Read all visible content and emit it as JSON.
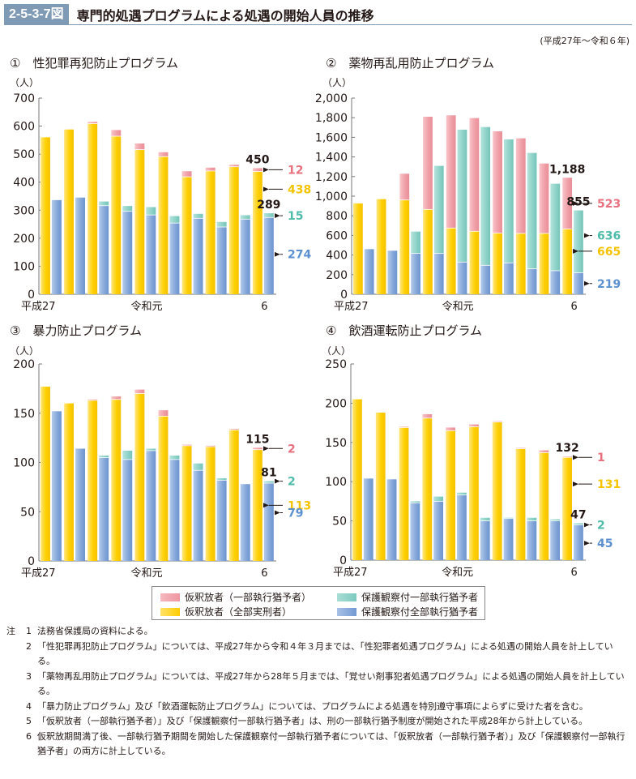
{
  "header": {
    "figure_number": "2-5-3-7図",
    "title": "専門的処遇プログラムによる処遇の開始人員の推移",
    "period": "(平成27年～令和６年)"
  },
  "colors": {
    "pink": "#f0a0a8",
    "yellow": "#ffd21f",
    "teal": "#8fd3c9",
    "blue": "#86a8da",
    "pink_label": "#e8707f",
    "yellow_label": "#f5c400",
    "teal_label": "#4fbcaa",
    "blue_label": "#5b8fd0"
  },
  "legend": [
    {
      "key": "pink",
      "label": "仮釈放者（一部執行猶予者）"
    },
    {
      "key": "teal",
      "label": "保護観察付一部執行猶予者"
    },
    {
      "key": "yellow",
      "label": "仮釈放者（全部実刑者）"
    },
    {
      "key": "blue",
      "label": "保護観察付全部執行猶予者"
    }
  ],
  "chart_data": [
    {
      "type": "bar",
      "stacked": true,
      "title": "①　性犯罪再犯防止プログラム",
      "ylabel": "（人）",
      "ylim": [
        0,
        700
      ],
      "yticks": [
        0,
        100,
        200,
        300,
        400,
        500,
        600,
        700
      ],
      "ytick_labels": [
        "0",
        "100",
        "200",
        "300",
        "400",
        "500",
        "600",
        "700"
      ],
      "categories": [
        "平成27",
        "28",
        "29",
        "30",
        "令和元",
        "2",
        "3",
        "4",
        "5",
        "6"
      ],
      "xtick_labels": [
        {
          "index": 0,
          "label": "平成27"
        },
        {
          "index": 4,
          "label": "令和元"
        },
        {
          "index": 9,
          "label": "6"
        }
      ],
      "groups": [
        {
          "name": "仮釈放者",
          "stack": [
            {
              "series": "仮釈放者（全部実刑者）",
              "color": "yellow",
              "values": [
                560,
                588,
                609,
                564,
                516,
                491,
                419,
                440,
                455,
                438
              ]
            },
            {
              "series": "仮釈放者（一部執行猶予者）",
              "color": "pink",
              "values": [
                0,
                0,
                6,
                22,
                22,
                16,
                20,
                12,
                7,
                12
              ]
            }
          ]
        },
        {
          "name": "保護観察",
          "stack": [
            {
              "series": "保護観察付全部執行猶予者",
              "color": "blue",
              "values": [
                336,
                345,
                316,
                296,
                283,
                254,
                271,
                240,
                268,
                274
              ]
            },
            {
              "series": "保護観察付一部執行猶予者",
              "color": "teal",
              "values": [
                0,
                0,
                15,
                19,
                28,
                25,
                16,
                18,
                14,
                15
              ]
            }
          ]
        }
      ],
      "annotations": {
        "total_a": "450",
        "total_b": "289",
        "pink": "12",
        "yellow": "438",
        "teal": "15",
        "blue": "274"
      }
    },
    {
      "type": "bar",
      "stacked": true,
      "title": "②　薬物再乱用防止プログラム",
      "ylabel": "（人）",
      "ylim": [
        0,
        2000
      ],
      "yticks": [
        0,
        200,
        400,
        600,
        800,
        1000,
        1200,
        1400,
        1600,
        1800,
        2000
      ],
      "ytick_labels": [
        "0",
        "200",
        "400",
        "600",
        "800",
        "1,000",
        "1,200",
        "1,400",
        "1,600",
        "1,800",
        "2,000"
      ],
      "categories": [
        "平成27",
        "28",
        "29",
        "30",
        "令和元",
        "2",
        "3",
        "4",
        "5",
        "6"
      ],
      "xtick_labels": [
        {
          "index": 0,
          "label": "平成27"
        },
        {
          "index": 4,
          "label": "令和元"
        },
        {
          "index": 9,
          "label": "6"
        }
      ],
      "groups": [
        {
          "name": "仮釈放者",
          "stack": [
            {
              "series": "仮釈放者（全部実刑者）",
              "color": "yellow",
              "values": [
                926,
                970,
                961,
                865,
                675,
                642,
                623,
                620,
                620,
                665
              ]
            },
            {
              "series": "仮釈放者（一部執行猶予者）",
              "color": "pink",
              "values": [
                0,
                0,
                268,
                945,
                1149,
                1154,
                1038,
                970,
                713,
                523
              ]
            }
          ]
        },
        {
          "name": "保護観察",
          "stack": [
            {
              "series": "保護観察付全部執行猶予者",
              "color": "blue",
              "values": [
                460,
                444,
                416,
                416,
                328,
                295,
                320,
                259,
                240,
                219
              ]
            },
            {
              "series": "保護観察付一部執行猶予者",
              "color": "teal",
              "values": [
                0,
                0,
                223,
                893,
                1350,
                1410,
                1259,
                1182,
                887,
                636
              ]
            }
          ]
        }
      ],
      "annotations": {
        "total_a": "1,188",
        "total_b": "855",
        "pink": "523",
        "yellow": "665",
        "teal": "636",
        "blue": "219"
      }
    },
    {
      "type": "bar",
      "stacked": true,
      "title": "③　暴力防止プログラム",
      "ylabel": "（人）",
      "ylim": [
        0,
        200
      ],
      "yticks": [
        0,
        50,
        100,
        150,
        200
      ],
      "ytick_labels": [
        "0",
        "50",
        "100",
        "150",
        "200"
      ],
      "categories": [
        "平成27",
        "28",
        "29",
        "30",
        "令和元",
        "2",
        "3",
        "4",
        "5",
        "6"
      ],
      "xtick_labels": [
        {
          "index": 0,
          "label": "平成27"
        },
        {
          "index": 4,
          "label": "令和元"
        },
        {
          "index": 9,
          "label": "6"
        }
      ],
      "groups": [
        {
          "name": "仮釈放者",
          "stack": [
            {
              "series": "仮釈放者（全部実刑者）",
              "color": "yellow",
              "values": [
                177,
                160,
                163,
                164,
                170,
                147,
                117,
                116,
                133,
                113
              ]
            },
            {
              "series": "仮釈放者（一部執行猶予者）",
              "color": "pink",
              "values": [
                0,
                0,
                1,
                3,
                4,
                6,
                1,
                1,
                1,
                2
              ]
            }
          ]
        },
        {
          "name": "保護観察",
          "stack": [
            {
              "series": "保護観察付全部執行猶予者",
              "color": "blue",
              "values": [
                152,
                114,
                105,
                103,
                112,
                103,
                92,
                82,
                78,
                79
              ]
            },
            {
              "series": "保護観察付一部執行猶予者",
              "color": "teal",
              "values": [
                0,
                0,
                2,
                9,
                2,
                4,
                7,
                2,
                0,
                2
              ]
            }
          ]
        }
      ],
      "annotations": {
        "total_a": "115",
        "total_b": "81",
        "pink": "2",
        "yellow": "113",
        "teal": "2",
        "blue": "79"
      }
    },
    {
      "type": "bar",
      "stacked": true,
      "title": "④　飲酒運転防止プログラム",
      "ylabel": "（人）",
      "ylim": [
        0,
        250
      ],
      "yticks": [
        0,
        50,
        100,
        150,
        200,
        250
      ],
      "ytick_labels": [
        "0",
        "50",
        "100",
        "150",
        "200",
        "250"
      ],
      "categories": [
        "平成27",
        "28",
        "29",
        "30",
        "令和元",
        "2",
        "3",
        "4",
        "5",
        "6"
      ],
      "xtick_labels": [
        {
          "index": 0,
          "label": "平成27"
        },
        {
          "index": 4,
          "label": "令和元"
        },
        {
          "index": 9,
          "label": "6"
        }
      ],
      "groups": [
        {
          "name": "仮釈放者",
          "stack": [
            {
              "series": "仮釈放者（全部実刑者）",
              "color": "yellow",
              "values": [
                205,
                188,
                169,
                181,
                165,
                170,
                176,
                142,
                137,
                131
              ]
            },
            {
              "series": "仮釈放者（一部執行猶予者）",
              "color": "pink",
              "values": [
                0,
                0,
                1,
                5,
                4,
                3,
                1,
                1,
                3,
                1
              ]
            }
          ]
        },
        {
          "name": "保護観察",
          "stack": [
            {
              "series": "保護観察付全部執行猶予者",
              "color": "blue",
              "values": [
                104,
                103,
                73,
                75,
                83,
                50,
                53,
                50,
                50,
                45
              ]
            },
            {
              "series": "保護観察付一部執行猶予者",
              "color": "teal",
              "values": [
                0,
                0,
                2,
                6,
                3,
                4,
                1,
                4,
                2,
                2
              ]
            }
          ]
        }
      ],
      "annotations": {
        "total_a": "132",
        "total_b": "47",
        "pink": "1",
        "yellow": "131",
        "teal": "2",
        "blue": "45"
      }
    }
  ],
  "notes": {
    "label": "注",
    "items": [
      {
        "num": "1",
        "text": "法務省保護局の資料による。"
      },
      {
        "num": "2",
        "text": "「性犯罪再犯防止プログラム」については、平成27年から令和４年３月までは、「性犯罪者処遇プログラム」による処遇の開始人員を計上している。"
      },
      {
        "num": "3",
        "text": "「薬物再乱用防止プログラム」については、平成27年から28年５月までは、「覚せい剤事犯者処遇プログラム」による処遇の開始人員を計上している。"
      },
      {
        "num": "4",
        "text": "「暴力防止プログラム」及び「飲酒運転防止プログラム」については、プログラムによる処遇を特別遵守事項によらずに受けた者を含む。"
      },
      {
        "num": "5",
        "text": "「仮釈放者（一部執行猶予者）」及び「保護観察付一部執行猶予者」は、刑の一部執行猶予制度が開始された平成28年から計上している。"
      },
      {
        "num": "6",
        "text": "仮釈放期間満了後、一部執行猶予期間を開始した保護観察付一部執行猶予者については、「仮釈放者（一部執行猶予者）」及び「保護観察付一部執行猶予者」の両方に計上している。"
      }
    ]
  }
}
